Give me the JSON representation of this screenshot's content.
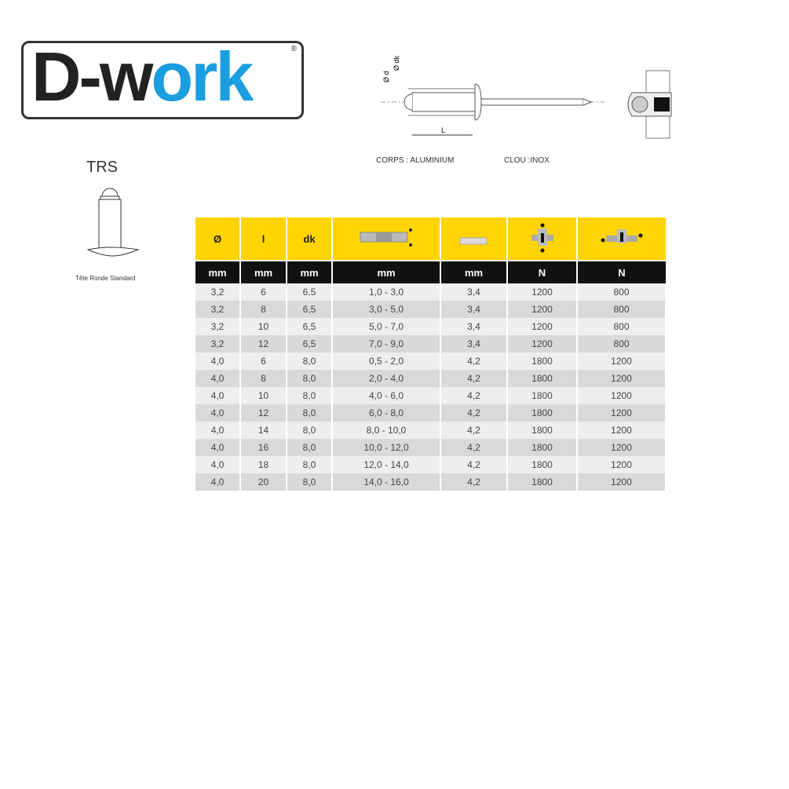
{
  "logo": {
    "text_dark": "D-w",
    "text_blue": "ork",
    "registered": "®"
  },
  "diagram": {
    "label_d": "Ø d",
    "label_dk": "Ø dk",
    "label_L": "L",
    "body_material": "CORPS : ALUMINIUM",
    "mandrel_material": "CLOU :INOX"
  },
  "head_type": {
    "code": "TRS",
    "caption": "Tête Ronde Standard"
  },
  "table": {
    "header_colors": {
      "yellow": "#ffd400",
      "black": "#111111"
    },
    "headers": [
      "Ø",
      "l",
      "dk",
      "grip-range-icon",
      "drill-hole-icon",
      "shear-force-icon",
      "tensile-force-icon"
    ],
    "units": [
      "mm",
      "mm",
      "mm",
      "mm",
      "mm",
      "N",
      "N"
    ],
    "rows": [
      [
        "3,2",
        "6",
        "6,5",
        "1,0 - 3,0",
        "3,4",
        "1200",
        "800"
      ],
      [
        "3,2",
        "8",
        "6,5",
        "3,0 - 5,0",
        "3,4",
        "1200",
        "800"
      ],
      [
        "3,2",
        "10",
        "6,5",
        "5,0 - 7,0",
        "3,4",
        "1200",
        "800"
      ],
      [
        "3,2",
        "12",
        "6,5",
        "7,0 - 9,0",
        "3,4",
        "1200",
        "800"
      ],
      [
        "4,0",
        "6",
        "8,0",
        "0,5 - 2,0",
        "4,2",
        "1800",
        "1200"
      ],
      [
        "4,0",
        "8",
        "8,0",
        "2,0 - 4,0",
        "4,2",
        "1800",
        "1200"
      ],
      [
        "4,0",
        "10",
        "8,0",
        "4,0 - 6,0",
        "4,2",
        "1800",
        "1200"
      ],
      [
        "4,0",
        "12",
        "8,0",
        "6,0 - 8,0",
        "4,2",
        "1800",
        "1200"
      ],
      [
        "4,0",
        "14",
        "8,0",
        "8,0 - 10,0",
        "4,2",
        "1800",
        "1200"
      ],
      [
        "4,0",
        "16",
        "8,0",
        "10,0 - 12,0",
        "4,2",
        "1800",
        "1200"
      ],
      [
        "4,0",
        "18",
        "8,0",
        "12,0 - 14,0",
        "4,2",
        "1800",
        "1200"
      ],
      [
        "4,0",
        "20",
        "8,0",
        "14,0 - 16,0",
        "4,2",
        "1800",
        "1200"
      ]
    ]
  }
}
